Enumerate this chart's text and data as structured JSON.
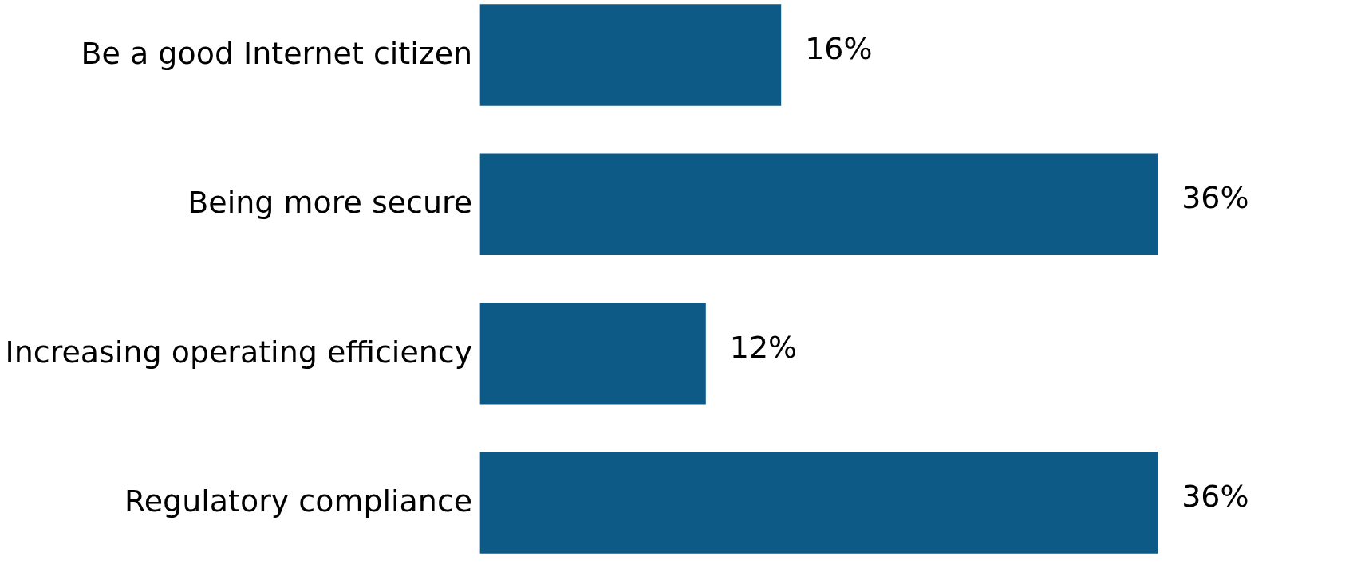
{
  "chart_data": {
    "type": "bar",
    "orientation": "horizontal",
    "categories": [
      "Be a good Internet citizen",
      "Being more secure",
      "Increasing operating efficiency",
      "Regulatory compliance"
    ],
    "values": [
      16,
      36,
      12,
      36
    ],
    "value_labels": [
      "16%",
      "36%",
      "12%",
      "36%"
    ],
    "color": "#0d5a87"
  }
}
